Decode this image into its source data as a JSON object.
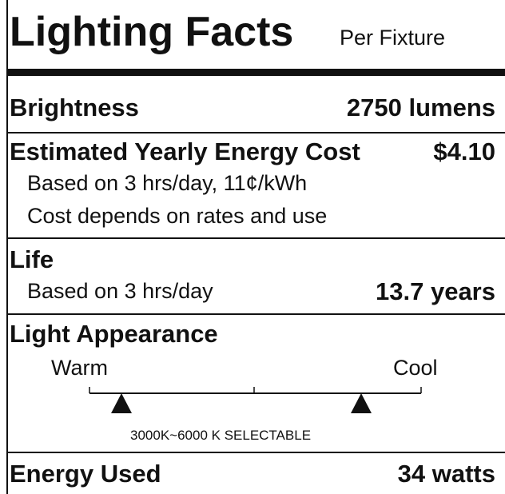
{
  "header": {
    "title": "Lighting Facts",
    "subtitle": "Per Fixture"
  },
  "brightness": {
    "label": "Brightness",
    "value": "2750 lumens"
  },
  "energy_cost": {
    "label": "Estimated Yearly Energy Cost",
    "value": "$4.10",
    "notes": [
      "Based on 3 hrs/day, 11¢/kWh",
      "Cost depends on rates and use"
    ]
  },
  "life": {
    "label": "Life",
    "note": "Based on 3 hrs/day",
    "value": "13.7 years"
  },
  "light_appearance": {
    "label": "Light Appearance",
    "scale_labels": [
      "Warm",
      "Cool"
    ],
    "note": "3000K~6000 K SELECTABLE"
  },
  "energy_used": {
    "label": "Energy Used",
    "value": "34 watts"
  }
}
